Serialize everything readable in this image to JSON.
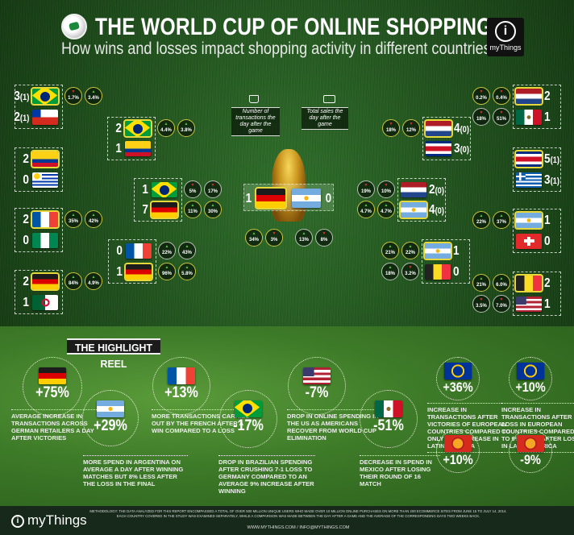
{
  "header": {
    "title": "THE WORLD CUP OF ONLINE SHOPPING",
    "subtitle": "How wins and losses impact shopping activity in different countries",
    "logo_text": "myThings"
  },
  "legend": {
    "transactions_icon": "shopping-bag-icon",
    "transactions_label": "Number of transactions the day after the game",
    "sales_icon": "banknote-icon",
    "sales_label": "Total sales the day after the game"
  },
  "colors": {
    "increase": "#58c84a",
    "decrease": "#e53030",
    "winner_outline": "#e6d83a"
  },
  "bracket": [
    {
      "stage": "round-of-16",
      "teams": [
        {
          "country": "brazil",
          "score": "3",
          "pens": "(1)",
          "winner": true,
          "stats": [
            {
              "dir": "down",
              "value": "1.7%"
            },
            {
              "dir": "up",
              "value": "3.4%"
            }
          ]
        },
        {
          "country": "chile",
          "score": "2",
          "pens": "(1)",
          "winner": false,
          "stats": []
        }
      ]
    },
    {
      "stage": "round-of-16",
      "teams": [
        {
          "country": "colombia",
          "score": "2",
          "winner": true,
          "stats": []
        },
        {
          "country": "uruguay",
          "score": "0",
          "winner": false,
          "stats": []
        }
      ]
    },
    {
      "stage": "round-of-16",
      "teams": [
        {
          "country": "france",
          "score": "2",
          "winner": true,
          "stats": [
            {
              "dir": "up",
              "value": "35%"
            },
            {
              "dir": "up",
              "value": "42%"
            }
          ]
        },
        {
          "country": "nigeria",
          "score": "0",
          "winner": false,
          "stats": []
        }
      ]
    },
    {
      "stage": "round-of-16",
      "teams": [
        {
          "country": "germany",
          "score": "2",
          "winner": true,
          "stats": [
            {
              "dir": "up",
              "value": "84%"
            },
            {
              "dir": "up",
              "value": "4.9%"
            }
          ]
        },
        {
          "country": "algeria",
          "score": "1",
          "winner": false,
          "stats": []
        }
      ]
    },
    {
      "stage": "quarter-final",
      "teams": [
        {
          "country": "brazil",
          "score": "2",
          "winner": true,
          "stats": [
            {
              "dir": "up",
              "value": "4.4%"
            },
            {
              "dir": "up",
              "value": "3.8%"
            }
          ]
        },
        {
          "country": "colombia",
          "score": "1",
          "winner": false,
          "stats": []
        }
      ]
    },
    {
      "stage": "quarter-final",
      "teams": [
        {
          "country": "france",
          "score": "0",
          "winner": false,
          "stats": [
            {
              "dir": "up",
              "value": "22%"
            },
            {
              "dir": "up",
              "value": "43%"
            }
          ]
        },
        {
          "country": "germany",
          "score": "1",
          "winner": true,
          "stats": [
            {
              "dir": "up",
              "value": "96%"
            },
            {
              "dir": "up",
              "value": "5.8%"
            }
          ]
        }
      ]
    },
    {
      "stage": "semi-final",
      "teams": [
        {
          "country": "brazil",
          "score": "1",
          "winner": false,
          "stats": [
            {
              "dir": "down",
              "value": "5%"
            },
            {
              "dir": "down",
              "value": "17%"
            }
          ]
        },
        {
          "country": "germany",
          "score": "7",
          "winner": true,
          "stats": [
            {
              "dir": "up",
              "value": "11%"
            },
            {
              "dir": "up",
              "value": "30%"
            }
          ]
        }
      ]
    },
    {
      "stage": "final",
      "teams": [
        {
          "country": "germany",
          "score": "1",
          "winner": true,
          "stats": [
            {
              "dir": "up",
              "value": "34%"
            },
            {
              "dir": "down",
              "value": "3%"
            }
          ]
        },
        {
          "country": "argentina",
          "score": "0",
          "winner": false,
          "stats": [
            {
              "dir": "up",
              "value": "13%"
            },
            {
              "dir": "down",
              "value": "8%"
            }
          ]
        }
      ]
    },
    {
      "stage": "semi-final",
      "teams": [
        {
          "country": "netherlands",
          "score": "2",
          "pens": "(0)",
          "winner": false,
          "stats": [
            {
              "dir": "down",
              "value": "19%"
            },
            {
              "dir": "down",
              "value": "10%"
            }
          ]
        },
        {
          "country": "argentina",
          "score": "4",
          "pens": "(0)",
          "winner": true,
          "stats": [
            {
              "dir": "up",
              "value": "4.7%"
            },
            {
              "dir": "up",
              "value": "4.7%"
            }
          ]
        }
      ]
    },
    {
      "stage": "quarter-final",
      "teams": [
        {
          "country": "netherlands",
          "score": "4",
          "pens": "(0)",
          "winner": true,
          "stats": [
            {
              "dir": "down",
              "value": "18%"
            },
            {
              "dir": "down",
              "value": "12%"
            }
          ]
        },
        {
          "country": "costa-rica",
          "score": "3",
          "pens": "(0)",
          "winner": false,
          "stats": []
        }
      ]
    },
    {
      "stage": "quarter-final",
      "teams": [
        {
          "country": "argentina",
          "score": "1",
          "winner": true,
          "stats": [
            {
              "dir": "up",
              "value": "21%"
            },
            {
              "dir": "up",
              "value": "22%"
            }
          ]
        },
        {
          "country": "belgium",
          "score": "0",
          "winner": false,
          "stats": [
            {
              "dir": "up",
              "value": "18%"
            },
            {
              "dir": "down",
              "value": "3.2%"
            }
          ]
        }
      ]
    },
    {
      "stage": "round-of-16",
      "teams": [
        {
          "country": "netherlands",
          "score": "2",
          "winner": true,
          "stats": [
            {
              "dir": "down",
              "value": "0.2%"
            },
            {
              "dir": "down",
              "value": "0.4%"
            }
          ]
        },
        {
          "country": "mexico",
          "score": "1",
          "winner": false,
          "stats": [
            {
              "dir": "down",
              "value": "18%"
            },
            {
              "dir": "down",
              "value": "51%"
            }
          ]
        }
      ]
    },
    {
      "stage": "round-of-16",
      "teams": [
        {
          "country": "costa-rica",
          "score": "5",
          "pens": "(1)",
          "winner": true,
          "stats": []
        },
        {
          "country": "greece",
          "score": "3",
          "pens": "(1)",
          "winner": false,
          "stats": []
        }
      ]
    },
    {
      "stage": "round-of-16",
      "teams": [
        {
          "country": "argentina",
          "score": "1",
          "winner": true,
          "stats": [
            {
              "dir": "up",
              "value": "22%"
            },
            {
              "dir": "up",
              "value": "37%"
            }
          ]
        },
        {
          "country": "switzerland",
          "score": "0",
          "winner": false,
          "stats": []
        }
      ]
    },
    {
      "stage": "round-of-16",
      "teams": [
        {
          "country": "belgium",
          "score": "2",
          "winner": true,
          "stats": [
            {
              "dir": "up",
              "value": "21%"
            },
            {
              "dir": "up",
              "value": "6.0%"
            }
          ]
        },
        {
          "country": "usa",
          "score": "1",
          "winner": false,
          "stats": [
            {
              "dir": "down",
              "value": "3.5%"
            },
            {
              "dir": "down",
              "value": "7.0%"
            }
          ]
        }
      ]
    }
  ],
  "highlight_reel": {
    "title": "THE HIGHLIGHT REEL",
    "items": [
      {
        "flag": "germany",
        "value": "+75%",
        "text": "Average increase in transactions across German retailers a day after victories"
      },
      {
        "flag": "argentina",
        "value": "+29%",
        "text": "More spend in Argentina on average a day after winning matches but 8% less after the loss in the final"
      },
      {
        "flag": "france",
        "value": "+13%",
        "text": "More transactions carried out by the French after a win compared to a loss"
      },
      {
        "flag": "brazil",
        "value": "-17%",
        "text": "Drop in Brazilian spending after crushing 7-1 loss to Germany compared to an average 9% increase after winning"
      },
      {
        "flag": "usa",
        "value": "-7%",
        "text": "Drop in online spending in the US as Americans recover from World Cup elimination"
      },
      {
        "flag": "mexico",
        "value": "-51%",
        "text": "Decrease in spend in Mexico after losing their round of 16 match"
      },
      {
        "flag": "eu",
        "value": "+36%",
        "text": "Increase in transactions after victories of European countries compared to only 10% increase in Latin America"
      },
      {
        "flag": "eu",
        "value": "+10%",
        "text": "Increase in transactions after loss in European countries compared to 9% drop after loss in Latin America"
      },
      {
        "flag": "latam",
        "value": "+10%"
      },
      {
        "flag": "latam",
        "value": "-9%"
      }
    ]
  },
  "footer": {
    "logo_text": "myThings",
    "methodology": "METHODOLOGY: THE DATA ANALYZED FOR THIS REPORT ENCOMPASSED A TOTAL OF OVER 500 MILLION UNIQUE USERS WHO MADE OVER 10 MILLION ONLINE PURCHASES ON MORE THAN 200 ECOMMERCE SITES FROM JUNE 15 TO JULY 14, 2014. EACH COUNTRY COVERED IN THE STUDY WAS EXAMINED SEPARATELY, WHILE A COMPARISON WAS MADE BETWEEN THE DAY AFTER A GAME AND THE AVERAGE OF THE CORRESPONDING DAYS TWO WEEKS BACK.",
    "website": "WWW.MYTHINGS.COM / INFO@MYTHINGS.COM"
  }
}
